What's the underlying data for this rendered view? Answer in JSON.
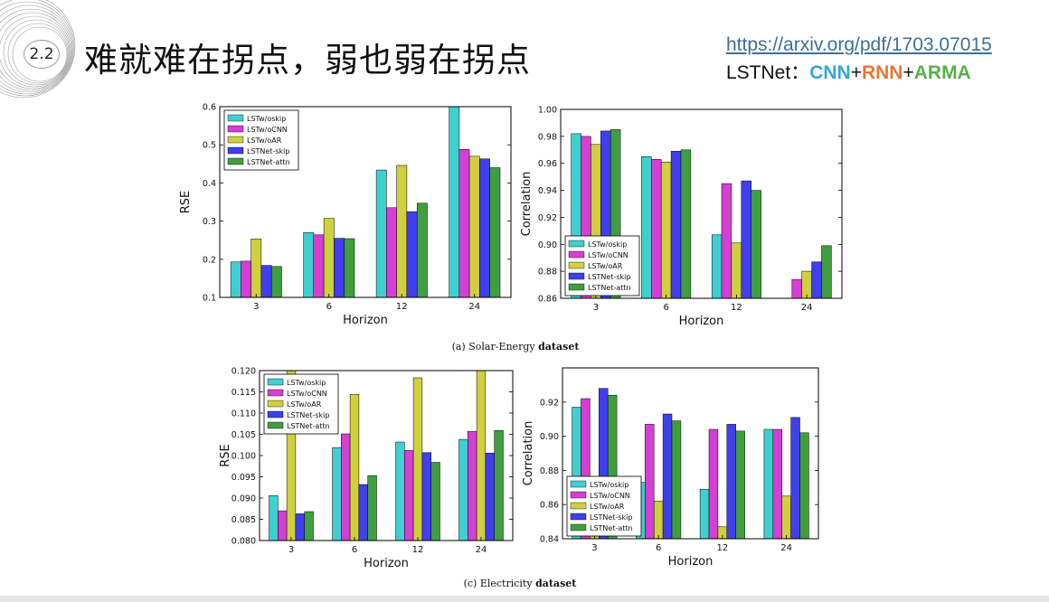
{
  "header": {
    "section_number": "2.2",
    "title": "难就难在拐点，弱也弱在拐点",
    "link_text": "https://arxiv.org/pdf/1703.07015",
    "model_prefix": "LSTNet：",
    "model_cnn": "CNN",
    "model_plus1": "+",
    "model_rnn": "RNN",
    "model_plus2": "+",
    "model_arma": "ARMA"
  },
  "captions": {
    "solar": {
      "label": "(a)",
      "name": "Solar-Energy",
      "suffix": "dataset"
    },
    "electricity": {
      "label": "(c)",
      "name": "Electricity",
      "suffix": "dataset"
    }
  },
  "series_colors": {
    "LSTw/oskip": "#3fcfcf",
    "LSTw/oCNN": "#d43fd4",
    "LSTw/oAR": "#cfcf3f",
    "LSTNet-skip": "#3f3fef",
    "LSTNet-attn": "#3f9f3f"
  },
  "chart_data": [
    {
      "id": "solar-rse",
      "type": "bar",
      "title": "",
      "xlabel": "Horizon",
      "ylabel": "RSE",
      "categories": [
        "3",
        "6",
        "12",
        "24"
      ],
      "ylim": [
        0.1,
        0.6
      ],
      "yticks": [
        "0.1",
        "0.2",
        "0.3",
        "0.4",
        "0.5",
        "0.6"
      ],
      "legend_position": "top-left",
      "series": [
        {
          "name": "LSTw/oskip",
          "values": [
            0.193,
            0.27,
            0.434,
            0.6
          ]
        },
        {
          "name": "LSTw/oCNN",
          "values": [
            0.195,
            0.264,
            0.335,
            0.488
          ]
        },
        {
          "name": "LSTw/oAR",
          "values": [
            0.253,
            0.307,
            0.446,
            0.47
          ]
        },
        {
          "name": "LSTNet-skip",
          "values": [
            0.184,
            0.255,
            0.325,
            0.463
          ]
        },
        {
          "name": "LSTNet-attn",
          "values": [
            0.181,
            0.254,
            0.347,
            0.44
          ]
        }
      ]
    },
    {
      "id": "solar-corr",
      "type": "bar",
      "title": "",
      "xlabel": "Horizon",
      "ylabel": "Correlation",
      "categories": [
        "3",
        "6",
        "12",
        "24"
      ],
      "ylim": [
        0.86,
        1.0
      ],
      "yticks": [
        "0.86",
        "0.88",
        "0.90",
        "0.92",
        "0.94",
        "0.96",
        "0.98",
        "1.00"
      ],
      "legend_position": "bottom-left",
      "series": [
        {
          "name": "LSTw/oskip",
          "values": [
            0.982,
            0.965,
            0.907,
            0.86
          ]
        },
        {
          "name": "LSTw/oCNN",
          "values": [
            0.98,
            0.963,
            0.945,
            0.874
          ]
        },
        {
          "name": "LSTw/oAR",
          "values": [
            0.974,
            0.961,
            0.901,
            0.88
          ]
        },
        {
          "name": "LSTNet-skip",
          "values": [
            0.984,
            0.969,
            0.947,
            0.887
          ]
        },
        {
          "name": "LSTNet-attn",
          "values": [
            0.985,
            0.97,
            0.94,
            0.899
          ]
        }
      ]
    },
    {
      "id": "elec-rse",
      "type": "bar",
      "title": "",
      "xlabel": "Horizon",
      "ylabel": "RSE",
      "categories": [
        "3",
        "6",
        "12",
        "24"
      ],
      "ylim": [
        0.08,
        0.12
      ],
      "yticks": [
        "0.080",
        "0.085",
        "0.090",
        "0.095",
        "0.100",
        "0.105",
        "0.110",
        "0.115",
        "0.120"
      ],
      "legend_position": "top-left",
      "series": [
        {
          "name": "LSTw/oskip",
          "values": [
            0.0906,
            0.1019,
            0.1032,
            0.1038
          ]
        },
        {
          "name": "LSTw/oCNN",
          "values": [
            0.087,
            0.1051,
            0.1012,
            0.1057
          ]
        },
        {
          "name": "LSTw/oAR",
          "values": [
            0.12,
            0.1144,
            0.1183,
            0.12
          ]
        },
        {
          "name": "LSTNet-skip",
          "values": [
            0.0863,
            0.0932,
            0.1007,
            0.1006
          ]
        },
        {
          "name": "LSTNet-attn",
          "values": [
            0.0868,
            0.0953,
            0.0984,
            0.1059
          ]
        }
      ]
    },
    {
      "id": "elec-corr",
      "type": "bar",
      "title": "",
      "xlabel": "Horizon",
      "ylabel": "Correlation",
      "categories": [
        "3",
        "6",
        "12",
        "24"
      ],
      "ylim": [
        0.84,
        0.94
      ],
      "yticks": [
        "0.84",
        "0.86",
        "0.88",
        "0.90",
        "0.92"
      ],
      "legend_position": "bottom-left",
      "series": [
        {
          "name": "LSTw/oskip",
          "values": [
            0.917,
            0.873,
            0.869,
            0.904
          ]
        },
        {
          "name": "LSTw/oCNN",
          "values": [
            0.922,
            0.907,
            0.904,
            0.904
          ]
        },
        {
          "name": "LSTw/oAR",
          "values": [
            0.862,
            0.862,
            0.847,
            0.865
          ]
        },
        {
          "name": "LSTNet-skip",
          "values": [
            0.928,
            0.913,
            0.907,
            0.911
          ]
        },
        {
          "name": "LSTNet-attn",
          "values": [
            0.924,
            0.909,
            0.903,
            0.902
          ]
        }
      ]
    }
  ]
}
